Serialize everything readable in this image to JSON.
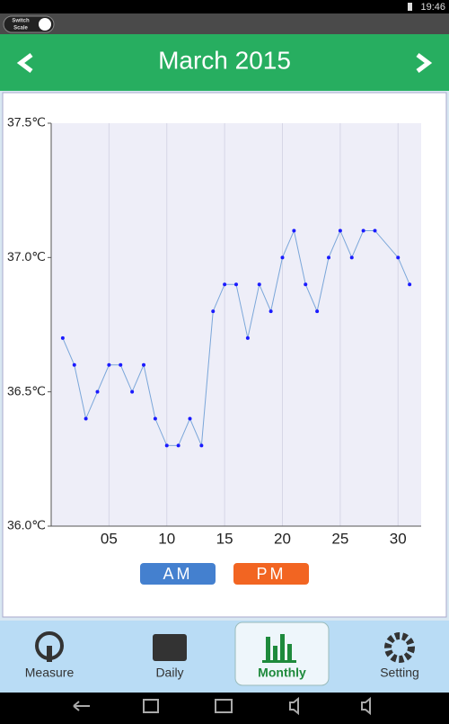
{
  "status_bar": {
    "time": "19:46"
  },
  "toggle": {
    "label_top": "Switch",
    "label_bottom": "Scale"
  },
  "header": {
    "title": "March 2015"
  },
  "chart_data": {
    "type": "line",
    "x": [
      1,
      2,
      3,
      4,
      5,
      6,
      7,
      8,
      9,
      10,
      11,
      12,
      13,
      14,
      15,
      16,
      17,
      18,
      19,
      20,
      21,
      22,
      23,
      24,
      25,
      26,
      27,
      28,
      30,
      31
    ],
    "values": [
      36.7,
      36.6,
      36.4,
      36.5,
      36.6,
      36.6,
      36.5,
      36.6,
      36.4,
      36.3,
      36.3,
      36.4,
      36.3,
      36.8,
      36.9,
      36.9,
      36.7,
      36.9,
      36.8,
      37.0,
      37.1,
      36.9,
      36.8,
      37.0,
      37.1,
      37.0,
      37.1,
      37.1,
      37.0,
      36.9
    ],
    "color": "#1a1aff",
    "line_color": "#7aa6d9",
    "xlim": [
      0,
      32
    ],
    "xticks": [
      {
        "value": 5,
        "label": "05"
      },
      10,
      15,
      20,
      25,
      30
    ],
    "ylim": [
      36.0,
      37.5
    ],
    "yticks": [
      {
        "value": 36.0,
        "label": "36.0℃"
      },
      {
        "value": 36.5,
        "label": "36.5℃"
      },
      {
        "value": 37.0,
        "label": "37.0℃"
      },
      {
        "value": 37.5,
        "label": "37.5℃"
      }
    ],
    "grid": true
  },
  "buttons": [
    {
      "label": "AM",
      "color": "#4480cf"
    },
    {
      "label": "PM",
      "color": "#f26522"
    }
  ],
  "tabs": [
    "Measure",
    "Daily",
    "Monthly",
    "Setting"
  ]
}
